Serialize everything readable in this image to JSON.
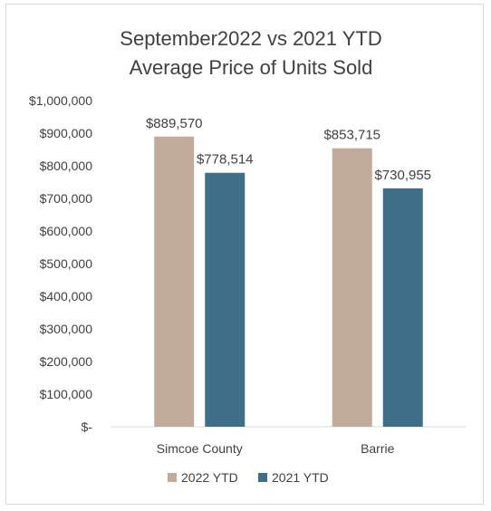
{
  "chart_data": {
    "type": "bar",
    "title": [
      "September2022 vs 2021 YTD",
      "Average Price of Units Sold"
    ],
    "categories": [
      "Simcoe County",
      "Barrie"
    ],
    "series": [
      {
        "name": "2022 YTD",
        "values": [
          889570,
          853715
        ],
        "labels": [
          "$889,570",
          "$853,715"
        ],
        "color": "#c2ab9a"
      },
      {
        "name": "2021 YTD",
        "values": [
          778514,
          730955
        ],
        "labels": [
          "$778,514",
          "$730,955"
        ],
        "color": "#3e6f86"
      }
    ],
    "y_ticks": [
      {
        "value": 0,
        "label": "$-"
      },
      {
        "value": 100000,
        "label": "$100,000"
      },
      {
        "value": 200000,
        "label": "$200,000"
      },
      {
        "value": 300000,
        "label": "$300,000"
      },
      {
        "value": 400000,
        "label": "$400,000"
      },
      {
        "value": 500000,
        "label": "$500,000"
      },
      {
        "value": 600000,
        "label": "$600,000"
      },
      {
        "value": 700000,
        "label": "$700,000"
      },
      {
        "value": 800000,
        "label": "$800,000"
      },
      {
        "value": 900000,
        "label": "$900,000"
      },
      {
        "value": 1000000,
        "label": "$1,000,000"
      }
    ],
    "ylim": [
      0,
      1000000
    ],
    "grid": false,
    "legend": "bottom-center",
    "axis_color": "#d9d9d9"
  }
}
